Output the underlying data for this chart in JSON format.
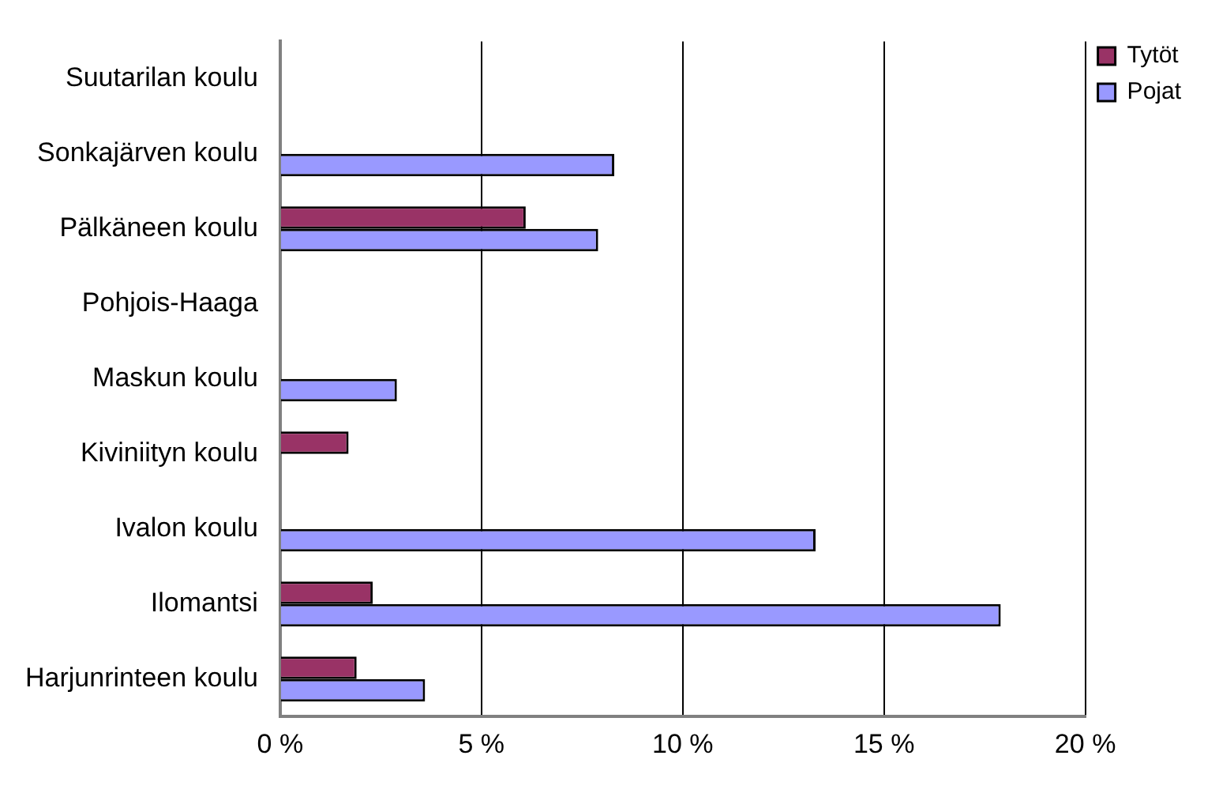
{
  "chart_data": {
    "type": "bar",
    "orientation": "horizontal",
    "categories": [
      "Suutarilan koulu",
      "Sonkajärven koulu",
      "Pälkäneen koulu",
      "Pohjois-Haaga",
      "Maskun koulu",
      "Kiviniityn koulu",
      "Ivalon koulu",
      "Ilomantsi",
      "Harjunrinteen koulu"
    ],
    "series": [
      {
        "name": "Tytöt",
        "color": "#993366",
        "values": [
          null,
          null,
          6.1,
          null,
          null,
          1.7,
          null,
          2.3,
          1.9
        ]
      },
      {
        "name": "Pojat",
        "color": "#9999ff",
        "values": [
          null,
          8.3,
          7.9,
          null,
          2.9,
          null,
          13.3,
          17.9,
          3.6
        ]
      }
    ],
    "xlim": [
      0,
      20
    ],
    "xticks": [
      {
        "value": 0,
        "label": "0 %"
      },
      {
        "value": 5,
        "label": "5 %"
      },
      {
        "value": 10,
        "label": "10 %"
      },
      {
        "value": 15,
        "label": "15 %"
      },
      {
        "value": 20,
        "label": "20 %"
      }
    ],
    "grid": "x",
    "legend": "top right"
  }
}
